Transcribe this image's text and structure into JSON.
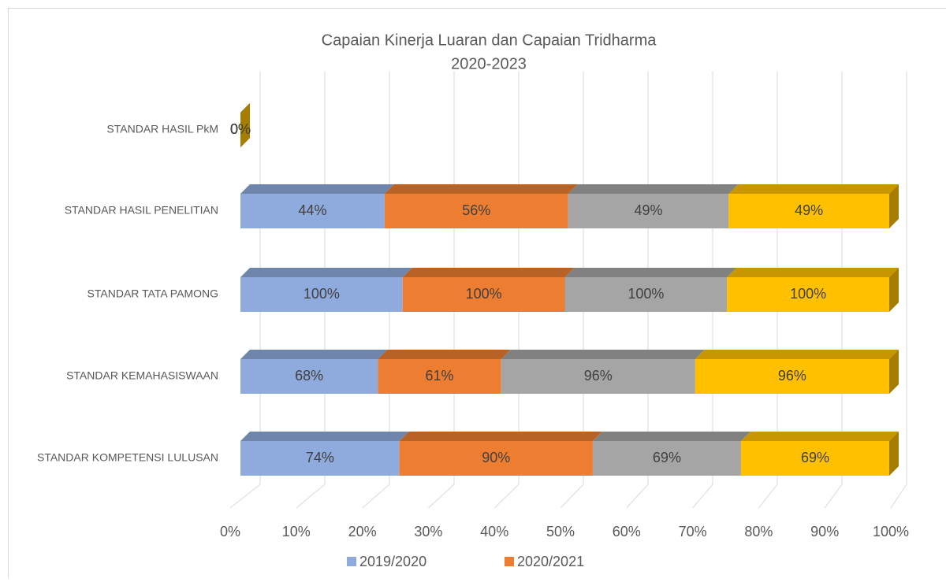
{
  "chart_data": {
    "type": "bar",
    "orientation": "horizontal",
    "stacked": "percent",
    "title": "Capaian Kinerja Luaran dan Capaian Tridharma",
    "subtitle": "2020-2023",
    "categories": [
      "STANDAR KOMPETENSI LULUSAN",
      "STANDAR KEMAHASISWAAN",
      "STANDAR TATA PAMONG",
      "STANDAR HASIL PENELITIAN",
      "STANDAR HASIL PkM"
    ],
    "series": [
      {
        "name": "2019/2020",
        "color": "#8faadc",
        "values": [
          74,
          68,
          100,
          44,
          0
        ],
        "value_labels": [
          "74%",
          "68%",
          "100%",
          "44%",
          "0%"
        ]
      },
      {
        "name": "2020/2021",
        "color": "#ed7d31",
        "values": [
          90,
          61,
          100,
          56,
          0
        ],
        "value_labels": [
          "90%",
          "61%",
          "100%",
          "56%",
          "0%"
        ]
      },
      {
        "color": "#a5a5a5",
        "values": [
          69,
          96,
          100,
          49,
          0
        ],
        "value_labels": [
          "69%",
          "96%",
          "100%",
          "49%",
          "0%"
        ]
      },
      {
        "color": "#ffc000",
        "values": [
          69,
          96,
          100,
          49,
          0
        ],
        "value_labels": [
          "69%",
          "96%",
          "100%",
          "49%",
          "0%"
        ]
      }
    ],
    "xlim": [
      0,
      100
    ],
    "xticks": [
      {
        "value": 0,
        "label": "0%"
      },
      {
        "value": 10,
        "label": "10%"
      },
      {
        "value": 20,
        "label": "20%"
      },
      {
        "value": 30,
        "label": "30%"
      },
      {
        "value": 40,
        "label": "40%"
      },
      {
        "value": 50,
        "label": "50%"
      },
      {
        "value": 60,
        "label": "60%"
      },
      {
        "value": 70,
        "label": "70%"
      },
      {
        "value": 80,
        "label": "80%"
      },
      {
        "value": 90,
        "label": "90%"
      },
      {
        "value": 100,
        "label": "100%"
      }
    ],
    "grid": true,
    "legend": "bottom"
  }
}
